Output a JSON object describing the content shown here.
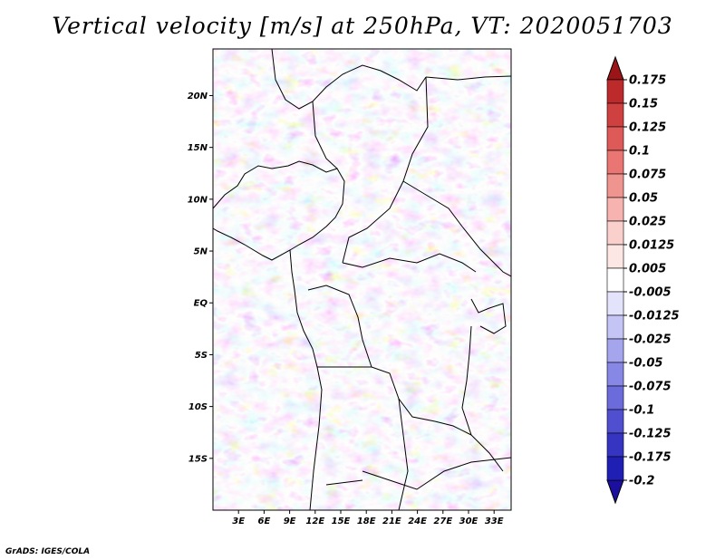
{
  "title": "Vertical velocity [m/s] at 250hPa, VT: 2020051703",
  "credit": "GrADS: IGES/COLA",
  "map": {
    "lon_range": [
      0,
      35
    ],
    "lat_range": [
      -20,
      24.5
    ],
    "lon_ticks": [
      {
        "value": 3,
        "label": "3E"
      },
      {
        "value": 6,
        "label": "6E"
      },
      {
        "value": 9,
        "label": "9E"
      },
      {
        "value": 12,
        "label": "12E"
      },
      {
        "value": 15,
        "label": "15E"
      },
      {
        "value": 18,
        "label": "18E"
      },
      {
        "value": 21,
        "label": "21E"
      },
      {
        "value": 24,
        "label": "24E"
      },
      {
        "value": 27,
        "label": "27E"
      },
      {
        "value": 30,
        "label": "30E"
      },
      {
        "value": 33,
        "label": "33E"
      }
    ],
    "lat_ticks": [
      {
        "value": 20,
        "label": "20N"
      },
      {
        "value": 15,
        "label": "15N"
      },
      {
        "value": 10,
        "label": "10N"
      },
      {
        "value": 5,
        "label": "5N"
      },
      {
        "value": 0,
        "label": "EQ"
      },
      {
        "value": -5,
        "label": "5S"
      },
      {
        "value": -10,
        "label": "10S"
      },
      {
        "value": -15,
        "label": "15S"
      }
    ]
  },
  "colorbar": {
    "levels": [
      {
        "label": "0.175",
        "color": "#a51f23"
      },
      {
        "label": "0.15",
        "color": "#bd2a2c"
      },
      {
        "label": "0.125",
        "color": "#cf4140"
      },
      {
        "label": "0.1",
        "color": "#de5a58"
      },
      {
        "label": "0.075",
        "color": "#e97672"
      },
      {
        "label": "0.05",
        "color": "#f09490"
      },
      {
        "label": "0.025",
        "color": "#f6b3af"
      },
      {
        "label": "0.0125",
        "color": "#fad0cd"
      },
      {
        "label": "0.005",
        "color": "#fde7e5"
      },
      {
        "label": "-0.005",
        "color": "#ffffff"
      },
      {
        "label": "-0.0125",
        "color": "#e3e3fb"
      },
      {
        "label": "-0.025",
        "color": "#c4c4f5"
      },
      {
        "label": "-0.05",
        "color": "#a5a5ee"
      },
      {
        "label": "-0.075",
        "color": "#8787e6"
      },
      {
        "label": "-0.1",
        "color": "#6b6bdc"
      },
      {
        "label": "-0.125",
        "color": "#4f4fd0"
      },
      {
        "label": "-0.175",
        "color": "#3535c2"
      },
      {
        "label": "-0.2",
        "color": "#1f1fb3"
      }
    ],
    "top_color": "#9a1418",
    "bottom_color": "#1a0f9e"
  }
}
